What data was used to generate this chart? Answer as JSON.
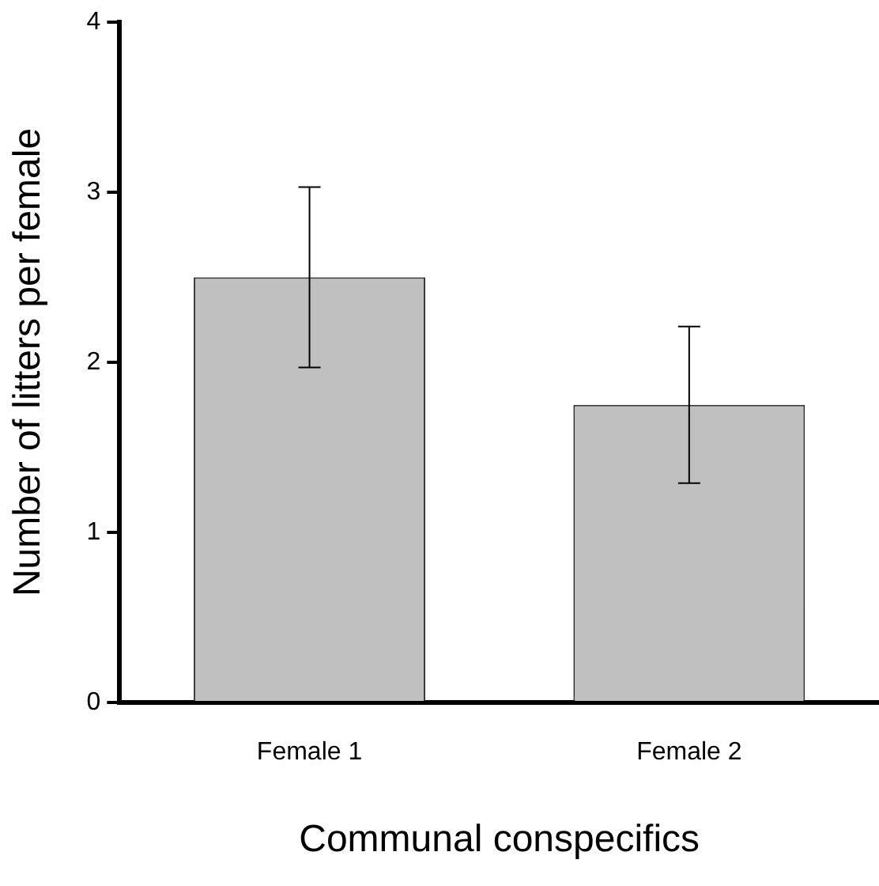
{
  "chart_data": {
    "type": "bar",
    "xlabel": "Communal conspecifics",
    "ylabel": "Number of litters per female",
    "categories": [
      "Female 1",
      "Female 2"
    ],
    "values": [
      2.5,
      1.75
    ],
    "errors": [
      0.53,
      0.46
    ],
    "color": "#c0c0c0",
    "ylim": [
      0,
      4
    ],
    "yticks": [
      0,
      1,
      2,
      3,
      4
    ]
  }
}
